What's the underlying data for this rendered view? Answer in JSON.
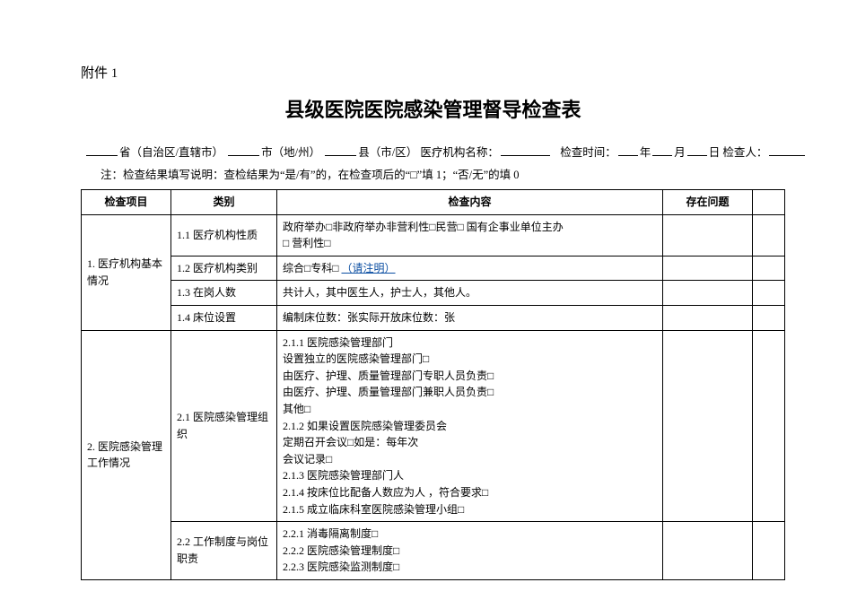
{
  "appendix": "附件 1",
  "title": "县级医院医院感染管理督导检查表",
  "meta": {
    "province_label": "省（自治区/直辖市）",
    "city_label": "市（地/州）",
    "county_label": "县（市/区）",
    "org_label": "医疗机构名称：",
    "time_label": "检查时间：",
    "year": "年",
    "month": "月",
    "day": "日",
    "checker_label": "检查人：",
    "ul_widths": {
      "prov": 35,
      "city": 35,
      "county": 35,
      "org": 55,
      "y": 22,
      "m": 22,
      "d": 22,
      "checker": 40
    }
  },
  "note": "注：检查结果填写说明：查检结果为“是/有”的，在检查项后的“□”填 1；“否/无”的填 0",
  "square": "□",
  "link_text": "（请注明）",
  "headers": {
    "item": "检查项目",
    "cat": "类别",
    "content": "检查内容",
    "issue": "存在问题",
    "blank": ""
  },
  "section1": {
    "title": "1. 医疗机构基本情况",
    "r1_cat": "1.1 医疗机构性质",
    "r1_content_a": "政府举办□非政府举办非营利性□民营□  国有企事业单位主办",
    "r1_content_b": "□  营利性□",
    "r2_cat": "1.2 医疗机构类别",
    "r2_content": "综合□专科□ ",
    "r3_cat": "1.3 在岗人数",
    "r3_content": "共计人，其中医生人，护士人，其他人。",
    "r4_cat": "1.4 床位设置",
    "r4_content": "编制床位数：张实际开放床位数：张"
  },
  "section2": {
    "title": "2. 医院感染管理工作情况",
    "r1_cat": "2.1 医院感染管理组织",
    "lines": [
      "2.1.1 医院感染管理部门",
      "设置独立的医院感染管理部门□",
      "由医疗、护理、质量管理部门专职人员负责□",
      "由医疗、护理、质量管理部门兼职人员负责□",
      "其他□",
      "2.1.2 如果设置医院感染管理委员会",
      "定期召开会议□如是：每年次",
      "会议记录□",
      "2.1.3 医院感染管理部门人",
      "2.1.4 按床位比配备人数应为人 ，符合要求□",
      "2.1.5 成立临床科室医院感染管理小组□"
    ],
    "r2_cat": "2.2 工作制度与岗位职责",
    "r2_lines": [
      "2.2.1 消毒隔离制度□",
      "2.2.2 医院感染管理制度□",
      "2.2.3 医院感染监测制度□"
    ]
  },
  "style": {
    "bg": "#ffffff",
    "text": "#000000",
    "border": "#000000",
    "link": "#0b4ea2",
    "font": "SimSun",
    "title_fontsize": 22,
    "body_fontsize": 12
  }
}
